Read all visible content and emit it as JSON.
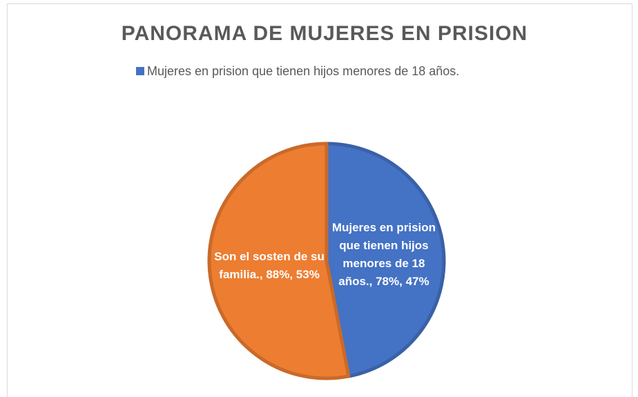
{
  "chart_data": {
    "type": "pie",
    "title": "PANORAMA DE MUJERES EN PRISION",
    "categories": [
      "Mujeres en prision que tienen hijos menores de 18 años.",
      "Son el sosten de su familia."
    ],
    "values": [
      78,
      88
    ],
    "value_labels": [
      "Mujeres en prision que tienen hijos menores de 18 años., 78%, 47%",
      "Son el sosten de su familia., 88%, 53%"
    ],
    "colors": [
      "#4472c4",
      "#ed7d31"
    ],
    "legend": "top",
    "legend_entries": [
      0
    ]
  }
}
